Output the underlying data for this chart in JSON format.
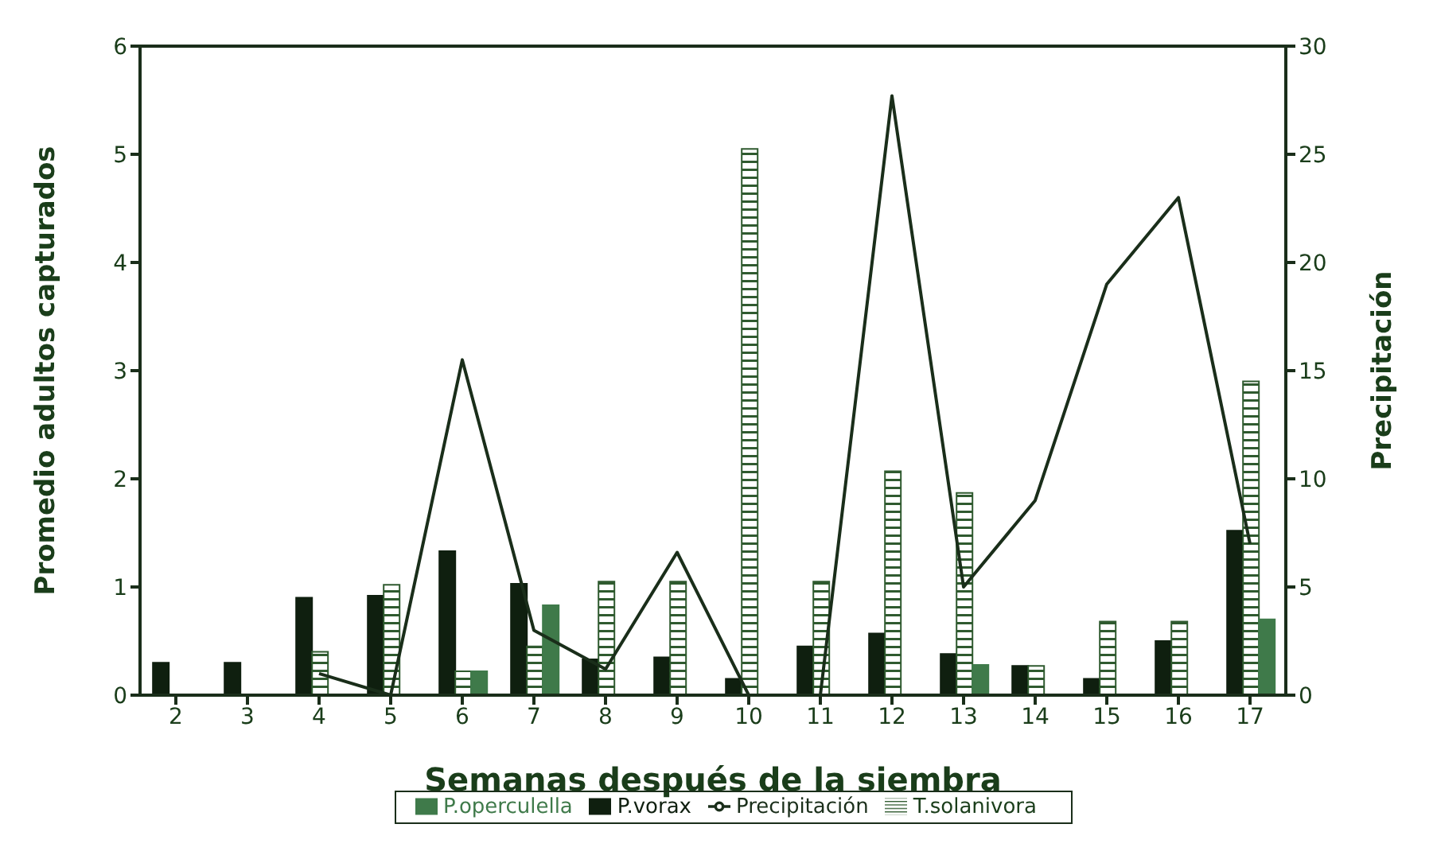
{
  "chart_data": {
    "type": "bar",
    "xlabel": "Semanas después de la siembra",
    "ylabel": "Promedio adultos capturados",
    "y2label": "Precipitación",
    "categories": [
      "2",
      "3",
      "4",
      "5",
      "6",
      "7",
      "8",
      "9",
      "10",
      "11",
      "12",
      "13",
      "14",
      "15",
      "16",
      "17"
    ],
    "series": [
      {
        "name": "P.vorax",
        "color": "#0f1f0f",
        "values": [
          0.3,
          0.3,
          0.9,
          0.92,
          1.33,
          1.03,
          0.33,
          0.35,
          0.15,
          0.45,
          0.57,
          0.38,
          0.27,
          0.15,
          0.5,
          1.52
        ]
      },
      {
        "name": "T.solanivora",
        "color": "#2f5a2f",
        "values": [
          null,
          null,
          0.4,
          1.02,
          0.22,
          0.45,
          1.05,
          1.05,
          5.05,
          1.05,
          2.07,
          1.87,
          0.27,
          0.68,
          0.68,
          2.9
        ]
      },
      {
        "name": "P.operculella",
        "color": "#3f7a4a",
        "values": [
          null,
          null,
          null,
          null,
          0.22,
          0.83,
          null,
          null,
          null,
          null,
          null,
          0.28,
          null,
          null,
          null,
          0.7
        ]
      },
      {
        "name": "Precipitación",
        "type": "line",
        "axis": "y2",
        "color": "#1a2e1a",
        "values": [
          null,
          null,
          1,
          0,
          15.5,
          3,
          1.2,
          6.6,
          0,
          0,
          27.7,
          5,
          9,
          19,
          23,
          7
        ]
      }
    ],
    "ylim": [
      0,
      6
    ],
    "yticks": [
      0,
      1,
      2,
      3,
      4,
      5,
      6
    ],
    "y2lim": [
      0,
      30
    ],
    "y2ticks": [
      0,
      5,
      10,
      15,
      20,
      25,
      30
    ],
    "grid": false,
    "legend": "bottom",
    "marker": "none",
    "line_style": "solid"
  }
}
